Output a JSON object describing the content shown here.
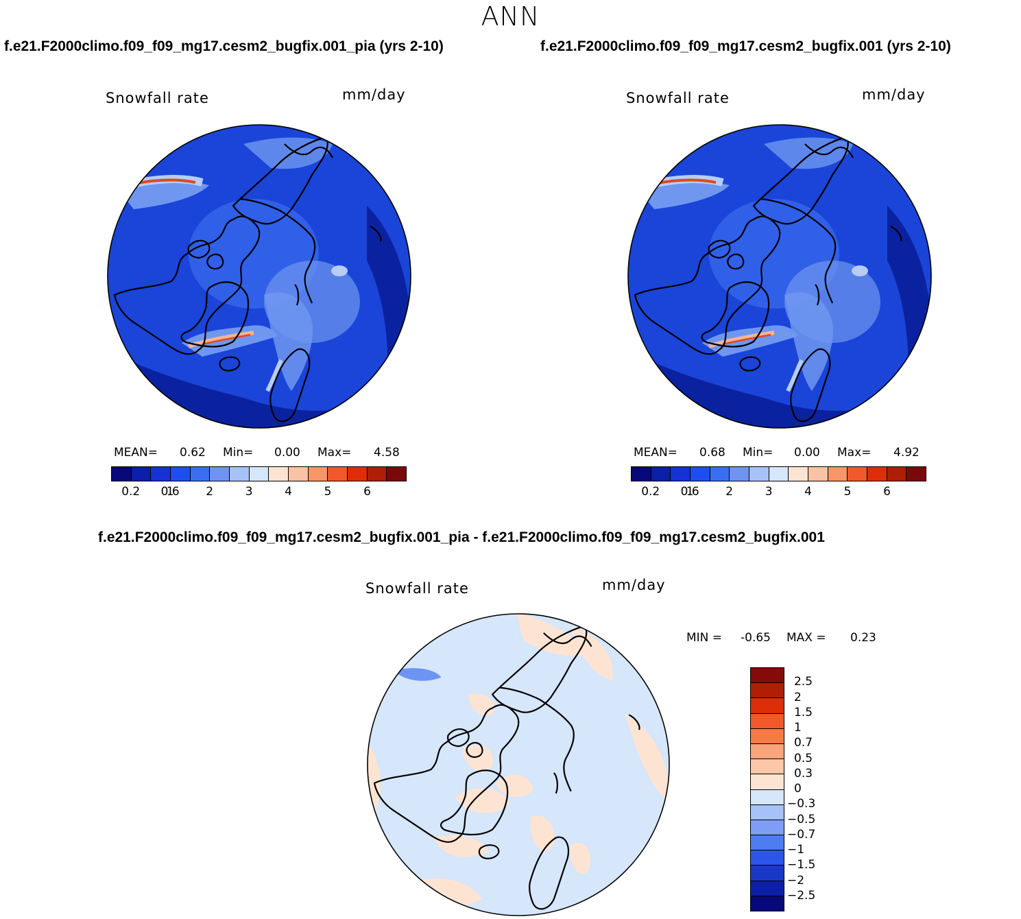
{
  "page": {
    "title": "ANN"
  },
  "panels": [
    {
      "case_title": "f.e21.F2000climo.f09_f09_mg17.cesm2_bugfix.001_pia (yrs 2-10)",
      "field": "Snowfall rate",
      "units": "mm/day",
      "stats": {
        "mean_label": "MEAN=",
        "mean": "0.62",
        "min_label": "Min=",
        "min": "0.00",
        "max_label": "Max=",
        "max": "4.58"
      }
    },
    {
      "case_title": "f.e21.F2000climo.f09_f09_mg17.cesm2_bugfix.001 (yrs 2-10)",
      "field": "Snowfall rate",
      "units": "mm/day",
      "stats": {
        "mean_label": "MEAN=",
        "mean": "0.68",
        "min_label": "Min=",
        "min": "0.00",
        "max_label": "Max=",
        "max": "4.92"
      }
    }
  ],
  "diff": {
    "title": "f.e21.F2000climo.f09_f09_mg17.cesm2_bugfix.001_pia - f.e21.F2000climo.f09_f09_mg17.cesm2_bugfix.001",
    "field": "Snowfall rate",
    "units": "mm/day",
    "stats": {
      "min_label": "MIN =",
      "min": "-0.65",
      "max_label": "MAX =",
      "max": "0.23"
    }
  },
  "colorbars": {
    "abs": {
      "colors": [
        "#08087a",
        "#0b1fa8",
        "#1432d6",
        "#1f4ef0",
        "#3a6ef2",
        "#6e94f2",
        "#a6c2f8",
        "#d6e6fb",
        "#fde4d2",
        "#fbc3a4",
        "#f79668",
        "#f2582a",
        "#dd2e08",
        "#b01e05",
        "#7a0a0a"
      ],
      "ticks": [
        "0.2",
        "0.6",
        "1",
        "2",
        "3",
        "4",
        "5",
        "6"
      ]
    },
    "diff": {
      "colors": [
        "#850a0a",
        "#b01e05",
        "#dd2e08",
        "#f2582a",
        "#f77a45",
        "#f9a47a",
        "#fbc7a8",
        "#fde4d2",
        "#d6e6fb",
        "#a6c2f8",
        "#7d9ef4",
        "#4d7df0",
        "#2c55ec",
        "#1a38c8",
        "#0b1fa8",
        "#08087a"
      ],
      "ticks": [
        "2.5",
        "2",
        "1.5",
        "1",
        "0.7",
        "0.5",
        "0.3",
        "0",
        "−0.3",
        "−0.5",
        "−0.7",
        "−1",
        "−1.5",
        "−2",
        "−2.5"
      ]
    }
  },
  "map_colors": {
    "ocean_deep": "#0b22a0",
    "ocean_mid": "#1a45d8",
    "mid": "#3160e8",
    "light": "#6f97f0",
    "pale": "#b7cdf6",
    "warm": "#f4b496",
    "hot": "#dd4a1a",
    "diff_base": "#d6e6fb",
    "diff_warm": "#fde4d2",
    "diff_cool": "#6e94f2"
  }
}
